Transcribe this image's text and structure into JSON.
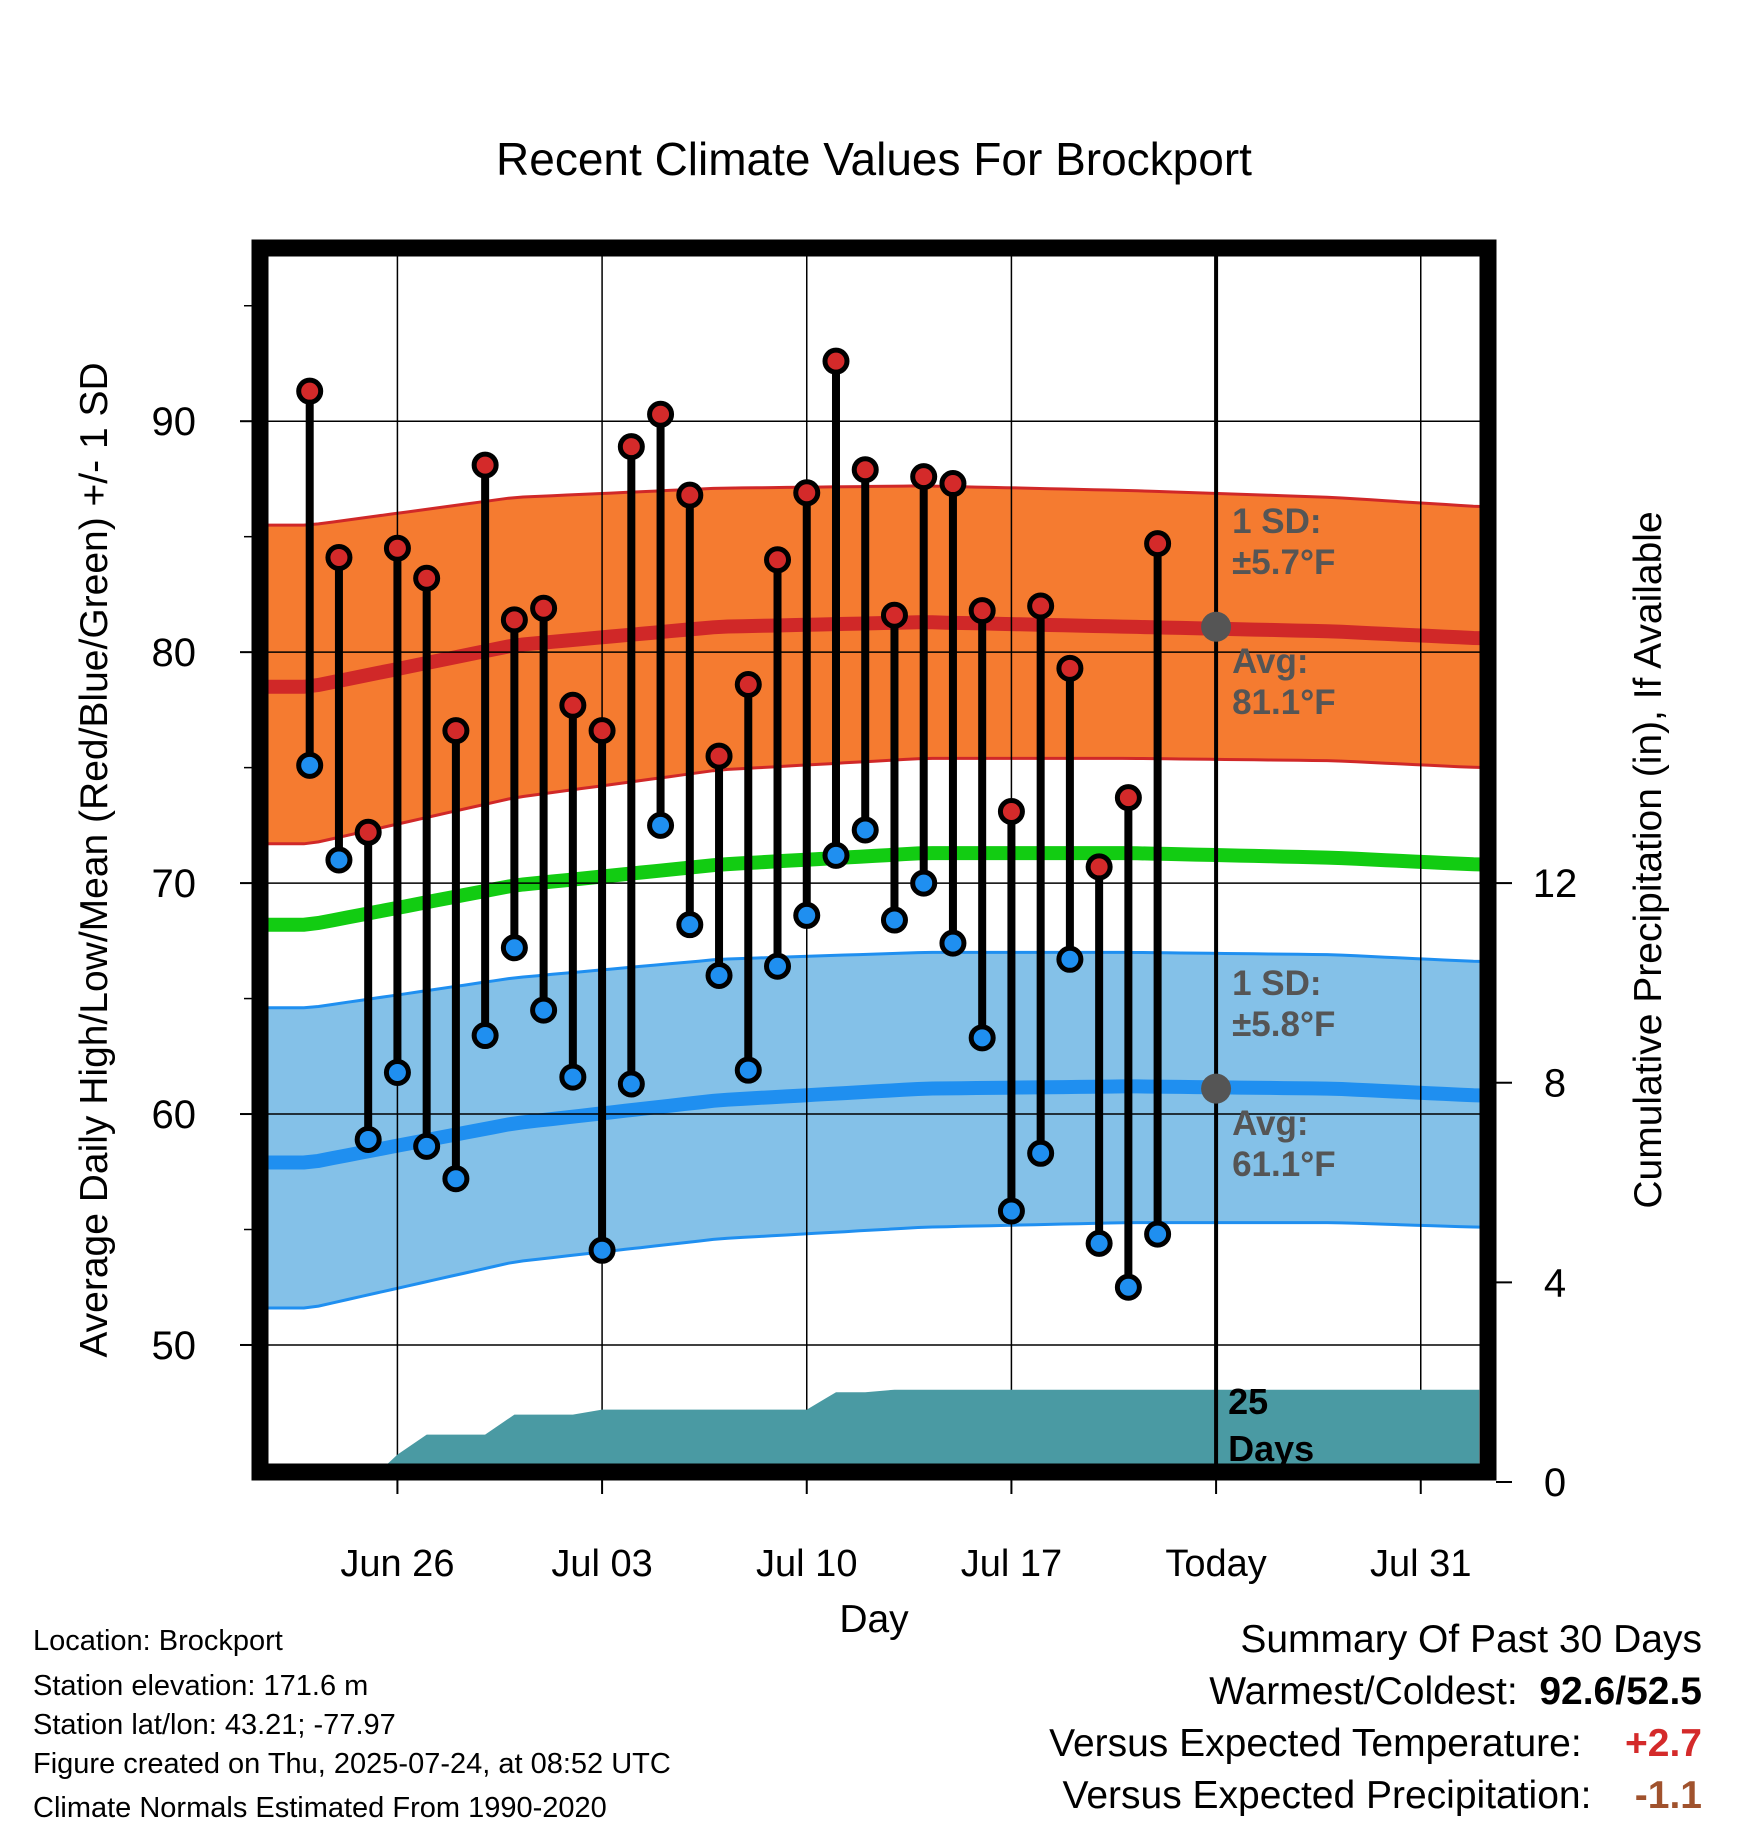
{
  "chart_data": {
    "type": "line",
    "title": "Recent Climate Values For Brockport",
    "xlabel": "Day",
    "ylabel": "Average Daily High/Low/Mean (Red/Blue/Green) +/- 1 SD",
    "ylabel_right": "Cumulative Precipitation (in), If Available",
    "ylim": [
      44.5,
      97.5
    ],
    "y_ticks": [
      "50",
      "60",
      "70",
      "80",
      "90"
    ],
    "ylim_right": [
      0,
      12
    ],
    "y_right_ticks": [
      "0",
      "4",
      "8",
      "12"
    ],
    "x_ticks": [
      {
        "day": 3,
        "label": "Jun 26"
      },
      {
        "day": 10,
        "label": "Jul 03"
      },
      {
        "day": 17,
        "label": "Jul 10"
      },
      {
        "day": 24,
        "label": "Jul 17"
      },
      {
        "day": 31,
        "label": "Today"
      },
      {
        "day": 38,
        "label": "Jul 31"
      }
    ],
    "days": [
      "Jun 24",
      "Jun 25",
      "Jun 26",
      "Jun 27",
      "Jun 28",
      "Jun 29",
      "Jun 30",
      "Jul 01",
      "Jul 02",
      "Jul 03",
      "Jul 04",
      "Jul 05",
      "Jul 06",
      "Jul 07",
      "Jul 08",
      "Jul 09",
      "Jul 10",
      "Jul 11",
      "Jul 12",
      "Jul 13",
      "Jul 14",
      "Jul 15",
      "Jul 16",
      "Jul 17",
      "Jul 18",
      "Jul 19",
      "Jul 20",
      "Jul 21",
      "Jul 22",
      "Jul 23"
    ],
    "series": [
      {
        "name": "High",
        "color": "#d42a2a",
        "values": [
          91.3,
          84.1,
          72.2,
          84.5,
          83.2,
          76.6,
          88.1,
          81.4,
          81.9,
          77.7,
          76.6,
          88.9,
          90.3,
          86.8,
          75.5,
          78.6,
          84.0,
          86.9,
          92.6,
          87.9,
          81.6,
          87.6,
          87.3,
          81.8,
          73.1,
          82.0,
          79.3,
          70.7,
          73.7,
          84.7
        ]
      },
      {
        "name": "Low",
        "color": "#1f8ff0",
        "values": [
          75.1,
          71.0,
          58.9,
          61.8,
          58.6,
          57.2,
          63.4,
          67.2,
          64.5,
          61.6,
          54.1,
          61.3,
          72.5,
          68.2,
          66.0,
          61.9,
          66.4,
          68.6,
          71.2,
          72.3,
          68.4,
          70.0,
          67.4,
          63.3,
          55.8,
          58.3,
          66.7,
          54.4,
          52.5,
          54.8
        ]
      }
    ],
    "normals": {
      "x_days": [
        0,
        7,
        14,
        21,
        28,
        35,
        40
      ],
      "high_avg": [
        78.5,
        80.3,
        81.1,
        81.3,
        81.1,
        80.9,
        80.6
      ],
      "high_upper": [
        85.5,
        86.7,
        87.1,
        87.2,
        87.0,
        86.7,
        86.3
      ],
      "high_lower": [
        71.7,
        73.7,
        74.9,
        75.4,
        75.4,
        75.3,
        75.0
      ],
      "mean_avg": [
        68.2,
        69.9,
        70.8,
        71.3,
        71.3,
        71.1,
        70.8
      ],
      "low_avg": [
        57.9,
        59.6,
        60.6,
        61.1,
        61.2,
        61.1,
        60.8
      ],
      "low_upper": [
        64.6,
        65.9,
        66.7,
        67.0,
        67.0,
        66.9,
        66.6
      ],
      "low_lower": [
        51.6,
        53.6,
        54.6,
        55.1,
        55.3,
        55.3,
        55.1
      ]
    },
    "precip": {
      "color": "#4a9aa3",
      "x_days": [
        2,
        3,
        4,
        5,
        6,
        7,
        8,
        9,
        10,
        17,
        18,
        19,
        20,
        40
      ],
      "values": [
        0,
        0.55,
        0.95,
        0.95,
        0.95,
        1.35,
        1.35,
        1.35,
        1.45,
        1.45,
        1.8,
        1.8,
        1.85,
        1.85
      ]
    },
    "grid": true,
    "today_day": 31,
    "colors": {
      "high_band": "#f57b30",
      "high_line": "#d02828",
      "mean_line": "#12cc12",
      "low_band": "#84c1e8",
      "low_line": "#1f8ff0",
      "annotation": "#555555",
      "precip": "#4a9aa3"
    },
    "annotations": {
      "high_sd": [
        "1 SD:",
        "±5.7°F"
      ],
      "high_avg": [
        "Avg:",
        "81.1°F"
      ],
      "low_sd": [
        "1 SD:",
        "±5.8°F"
      ],
      "low_avg": [
        "Avg:",
        "61.1°F"
      ],
      "days": [
        "25",
        "Days"
      ],
      "high_avg_value": 81.1,
      "low_avg_value": 61.1
    }
  },
  "info": {
    "location": "Location: Brockport",
    "elevation": "Station elevation: 171.6 m",
    "latlon": "Station lat/lon: 43.21; -77.97",
    "created": "Figure created on Thu, 2025-07-24, at 08:52 UTC",
    "normals": "Climate Normals Estimated From 1990-2020"
  },
  "summary": {
    "title": "Summary Of Past 30 Days",
    "warmest_label": "Warmest/Coldest:",
    "warmest_value": "92.6/52.5",
    "temp_label": "Versus Expected Temperature:",
    "temp_value": "+2.7",
    "temp_color": "#d42a2a",
    "precip_label": "Versus Expected Precipitation:",
    "precip_value": "-1.1",
    "precip_color": "#a0522d"
  }
}
